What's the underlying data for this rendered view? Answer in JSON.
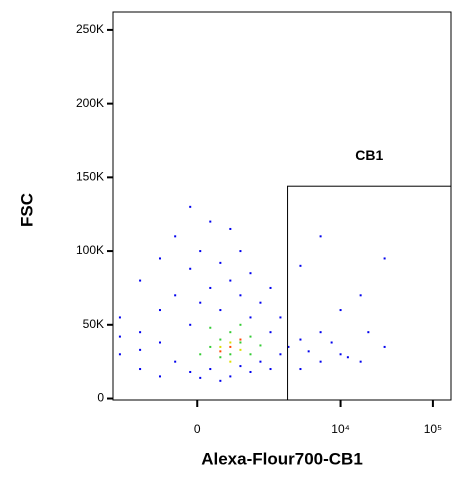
{
  "chart_data": {
    "type": "scatter",
    "x_label": "Alexa-Flour700-CB1",
    "y_label": "FSC",
    "xscale": "biexponential",
    "xlim": [
      -2260,
      157000
    ],
    "ylim": [
      -1000,
      262144
    ],
    "xticks": [
      0,
      {
        "value": 10000,
        "label": "10⁴"
      },
      {
        "value": 100000,
        "label": "10⁵"
      }
    ],
    "yticks": [
      0,
      {
        "value": 50000,
        "label": "50K"
      },
      {
        "value": 100000,
        "label": "100K"
      },
      {
        "value": 150000,
        "label": "150K"
      },
      {
        "value": 200000,
        "label": "200K"
      },
      {
        "value": 250000,
        "label": "250K"
      }
    ],
    "gate": {
      "name": "CB1",
      "x": [
        2640,
        157000
      ],
      "y": [
        -1000,
        144000
      ]
    },
    "series": [
      {
        "color": "#0000ee",
        "x": [
          -1890,
          -1890,
          -1100,
          -1100,
          -1100,
          -600,
          -600,
          -600,
          -325,
          -325,
          -325,
          -99,
          -99,
          -99,
          -99,
          42,
          42,
          42,
          186,
          186,
          186,
          342,
          342,
          342,
          518,
          518,
          518,
          729,
          729,
          729,
          985,
          985,
          985,
          1300,
          1300,
          1700,
          1700,
          1700,
          2200,
          2200,
          3660,
          3660,
          3660,
          6070,
          6070,
          6070,
          10000,
          10000,
          16500,
          16500,
          30000,
          30000,
          -1890,
          -1100,
          -600,
          2700,
          4500,
          8000,
          12000,
          20000
        ],
        "y": [
          30000,
          55000,
          20000,
          45000,
          80000,
          15000,
          60000,
          95000,
          25000,
          70000,
          110000,
          18000,
          50000,
          88000,
          130000,
          14000,
          65000,
          100000,
          20000,
          75000,
          120000,
          12000,
          60000,
          92000,
          15000,
          80000,
          115000,
          22000,
          70000,
          100000,
          18000,
          55000,
          85000,
          25000,
          65000,
          20000,
          45000,
          75000,
          30000,
          55000,
          20000,
          40000,
          90000,
          25000,
          45000,
          110000,
          30000,
          60000,
          25000,
          70000,
          35000,
          95000,
          42000,
          33000,
          38000,
          35000,
          32000,
          38000,
          28000,
          45000
        ]
      },
      {
        "color": "#33cc33",
        "x": [
          186,
          342,
          518,
          729,
          985,
          342,
          518,
          729,
          186,
          1300,
          42,
          985
        ],
        "y": [
          35000,
          40000,
          45000,
          38000,
          42000,
          28000,
          30000,
          50000,
          48000,
          36000,
          30000,
          30000
        ]
      },
      {
        "color": "#dddd00",
        "x": [
          342,
          518,
          729,
          518
        ],
        "y": [
          35000,
          38000,
          33000,
          25000
        ]
      },
      {
        "color": "#ff4400",
        "x": [
          518,
          729,
          342
        ],
        "y": [
          35000,
          40000,
          32000
        ]
      }
    ]
  }
}
